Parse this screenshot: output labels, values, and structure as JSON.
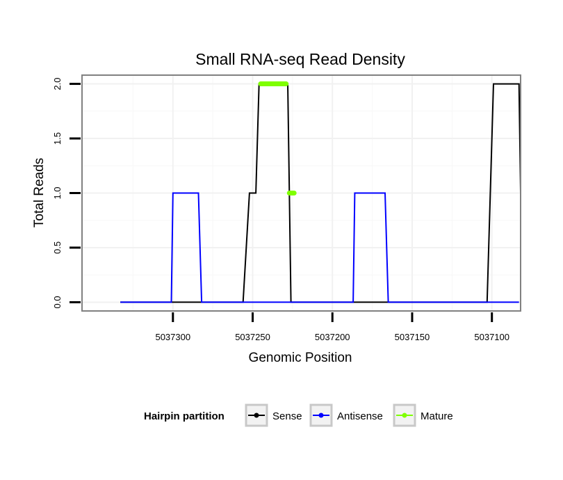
{
  "chart_data": {
    "type": "line",
    "title": "Small RNA-seq Read Density",
    "xlabel": "Genomic Position",
    "ylabel": "Total Reads",
    "x_reversed": true,
    "xlim": [
      5037082,
      5037357
    ],
    "ylim": [
      -0.08,
      2.08
    ],
    "x_ticks": [
      5037300,
      5037250,
      5037200,
      5037150,
      5037100
    ],
    "x_tick_labels": [
      "5037300",
      "5037250",
      "5037200",
      "5037150",
      "5037100"
    ],
    "y_ticks": [
      0.0,
      0.5,
      1.0,
      1.5,
      2.0
    ],
    "y_tick_labels": [
      "0.0",
      "0.5",
      "1.0",
      "1.5",
      "2.0"
    ],
    "grid": true,
    "legend": {
      "title": "Hairpin partition",
      "position": "bottom",
      "entries": [
        {
          "name": "Sense",
          "color": "#000000"
        },
        {
          "name": "Antisense",
          "color": "#0000ff"
        },
        {
          "name": "Mature",
          "color": "#7fff00"
        }
      ]
    },
    "series": [
      {
        "name": "Sense",
        "color": "#000000",
        "x": [
          5037333,
          5037256,
          5037252,
          5037248,
          5037246,
          5037228,
          5037226,
          5037223,
          5037103,
          5037099,
          5037083,
          5037082
        ],
        "y": [
          0,
          0,
          1,
          1,
          2,
          2,
          0,
          0,
          0,
          2,
          2,
          1
        ]
      },
      {
        "name": "Antisense",
        "color": "#0000ff",
        "x": [
          5037333,
          5037301,
          5037300,
          5037284,
          5037282,
          5037224,
          5037187,
          5037186,
          5037167,
          5037165,
          5037083
        ],
        "y": [
          0,
          0,
          1,
          1,
          0,
          0,
          0,
          1,
          1,
          0,
          0
        ]
      },
      {
        "name": "Mature",
        "color": "#7fff00",
        "x": [
          5037245,
          5037229,
          5037227,
          5037224
        ],
        "y": [
          2,
          2,
          1,
          1
        ],
        "segments": [
          [
            0,
            1
          ],
          [
            2,
            3
          ]
        ]
      }
    ]
  }
}
